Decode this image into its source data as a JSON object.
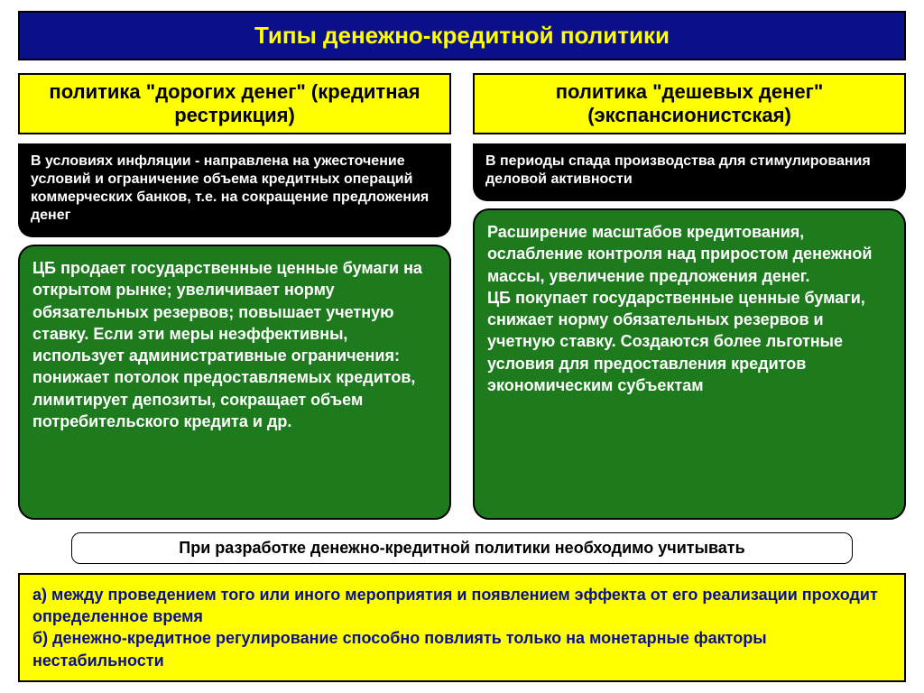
{
  "colors": {
    "title_bg": "#0a0f8a",
    "title_text": "#ffff00",
    "subheader_bg": "#ffff00",
    "subheader_text": "#000000",
    "context_bg": "#000000",
    "context_text": "#ffffff",
    "detail_bg": "#1d7a1d",
    "detail_text": "#ffffff",
    "notes_bg": "#ffff00",
    "notes_text": "#0a0f8a",
    "consider_text": "#000000"
  },
  "fontsizes": {
    "title": 26,
    "subheader": 22,
    "context": 16,
    "detail": 18,
    "consider": 18,
    "notes": 18
  },
  "title": "Типы денежно-кредитной политики",
  "left": {
    "subheader": "политика \"дорогих денег\" (кредитная рестрикция)",
    "context": "В условиях инфляции - направлена на ужесточение условий и ограничение объема кредитных операций коммерческих банков, т.е. на сокращение предложения денег",
    "detail": "ЦБ продает государственные ценные бумаги на открытом рынке; увеличивает норму обязательных резервов; повышает учетную ставку. Если эти меры неэффективны, использует административные ограничения: понижает потолок предоставляемых кредитов, лимитирует депозиты, сокращает объем потребительского кредита и др."
  },
  "right": {
    "subheader": "политика \"дешевых денег\" (экспансионистская)",
    "context": "В периоды спада производства для стимулирования деловой активности",
    "detail": "Расширение масштабов кредитования, ослабление контроля над приростом денежной массы, увеличение предложения денег.\nЦБ покупает государственные ценные бумаги, снижает норму обязательных резервов и учетную ставку. Создаются более льготные условия для предоставления кредитов экономическим субъектам"
  },
  "consider_label": "При разработке денежно-кредитной политики необходимо учитывать",
  "notes": "а) между проведением того или иного мероприятия и появлением эффекта от его реализации проходит определенное время\nб) денежно-кредитное регулирование способно повлиять только на монетарные факторы нестабильности"
}
